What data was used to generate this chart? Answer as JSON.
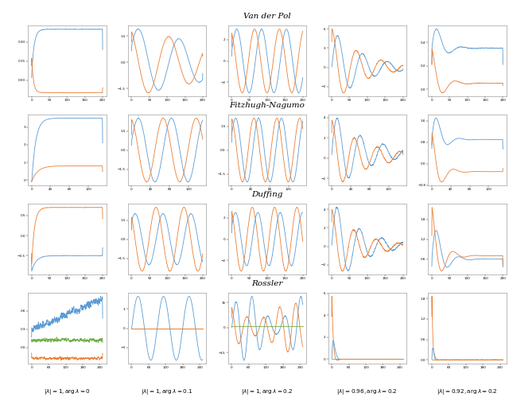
{
  "title_row1": "Van der Pol",
  "title_row2": "Fitzhugh-Nagumo",
  "title_row3": "Duffing",
  "title_row4": "Rossler",
  "col_labels": [
    "$|\\lambda| = 1, \\arg \\lambda = 0$",
    "$|\\lambda| = 1, \\arg \\lambda = 0.1$",
    "$|\\lambda| = 1, \\arg \\lambda = 0.2$",
    "$|\\lambda| = 0.96, \\arg \\lambda = 0.2$",
    "$|\\lambda| = 0.92, \\arg \\lambda = 0.2$"
  ],
  "color_blue": "#5B9BD5",
  "color_orange": "#ED7D31",
  "color_green": "#70AD47",
  "linewidth": 0.6,
  "figsize": [
    6.4,
    5.04
  ],
  "dpi": 100
}
